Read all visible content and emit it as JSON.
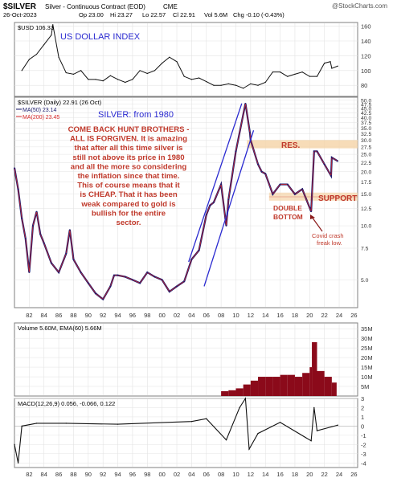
{
  "header": {
    "symbol": "$SILVER",
    "description": "Silver - Continuous Contract (EOD)",
    "exchange": "CME",
    "watermark": "@StockCharts.com",
    "date": "26-Oct-2023",
    "quote": {
      "op": "Op 23.00",
      "hi": "Hi 23.27",
      "lo": "Lo 22.57",
      "cl": "Cl 22.91",
      "vol": "Vol 5.6M",
      "chg": "Chg -0.10 (-0.43%)"
    }
  },
  "colors": {
    "price": "#1a1a6e",
    "ma50": "#d62728",
    "ma200": "#4a9a9a",
    "trendline": "#2a2ad0",
    "annotation_red": "#c0392b",
    "annotation_blue": "#2a2ad0",
    "volume": "#8b0a1a",
    "resistance_band": "#f5d3a6",
    "panel_border": "#7f7f7f",
    "grid": "#e3e3e3"
  },
  "chart_data": [
    {
      "type": "line",
      "panel": "dollar",
      "legend_label": "$USD 106.33",
      "title": "US DOLLAR INDEX",
      "x": [
        1981,
        1982,
        1983,
        1984,
        1985,
        1985.2,
        1986,
        1987,
        1988,
        1989,
        1990,
        1991,
        1992,
        1993,
        1994,
        1995,
        1996,
        1997,
        1998,
        1999,
        2000,
        2001,
        2002,
        2003,
        2004,
        2005,
        2006,
        2007,
        2008,
        2009,
        2010,
        2011,
        2012,
        2013,
        2014,
        2015,
        2016,
        2017,
        2018,
        2019,
        2020,
        2021,
        2022,
        2022.8,
        2023,
        2023.8
      ],
      "values": [
        100,
        115,
        122,
        135,
        148,
        162,
        118,
        97,
        95,
        100,
        88,
        88,
        86,
        93,
        88,
        84,
        88,
        100,
        96,
        100,
        110,
        118,
        112,
        92,
        88,
        90,
        85,
        80,
        80,
        82,
        80,
        76,
        82,
        80,
        84,
        98,
        98,
        92,
        95,
        98,
        92,
        92,
        110,
        112,
        103,
        106
      ],
      "ylim": [
        65,
        165
      ],
      "ticks": [
        80,
        100,
        120,
        140,
        160
      ],
      "grid": true
    },
    {
      "type": "line",
      "panel": "price",
      "legend": [
        "$SILVER (Daily) 22.91 (26 Oct)",
        "MA(50) 23.14",
        "MA(200) 23.45"
      ],
      "title": "SILVER: from 1980",
      "scale": "log",
      "x": [
        1980,
        1980.5,
        1981,
        1981.5,
        1982,
        1982.5,
        1983,
        1983.5,
        1984,
        1985,
        1986,
        1987,
        1987.5,
        1988,
        1989,
        1990,
        1991,
        1992,
        1993,
        1993.5,
        1994,
        1995,
        1996,
        1997,
        1998,
        1999,
        2000,
        2001,
        2002,
        2003,
        2004,
        2005,
        2006,
        2006.5,
        2007,
        2008,
        2008.7,
        2009,
        2010,
        2011.3,
        2011.9,
        2012,
        2013,
        2013.5,
        2014,
        2015,
        2016,
        2017,
        2018,
        2019,
        2020.2,
        2020.6,
        2021,
        2022,
        2022.9,
        2023,
        2023.8
      ],
      "values": [
        21,
        16,
        11,
        8.5,
        5.5,
        10,
        12,
        9,
        8,
        6.2,
        5.5,
        7,
        9.5,
        6.5,
        5.5,
        4.8,
        4.2,
        3.9,
        4.6,
        5.3,
        5.3,
        5.2,
        5.0,
        4.8,
        5.5,
        5.2,
        5.0,
        4.3,
        4.6,
        4.9,
        6.5,
        7.3,
        11.5,
        13,
        13.5,
        17,
        10,
        14,
        26,
        48,
        33,
        30,
        22,
        20,
        19.5,
        15,
        17,
        17,
        15,
        16,
        12,
        26,
        26,
        22,
        19,
        24,
        22.91
      ],
      "ylim": [
        3.5,
        52
      ],
      "ticks": [
        5.0,
        7.5,
        10.0,
        12.5,
        15.0,
        17.5,
        20.0,
        22.5,
        25.0,
        27.5,
        30.0,
        32.5,
        35.0,
        37.5,
        40.0,
        42.5,
        45.0,
        47.5,
        50.0
      ],
      "resistance": {
        "label": "RES.",
        "low": 27,
        "high": 30
      },
      "support": {
        "label": "SUPPORT",
        "value": 14.5
      },
      "trendlines": [
        {
          "x": [
            2003.6,
            2010.8
          ],
          "values": [
            6.3,
            48
          ]
        },
        {
          "x": [
            2005.7,
            2012.4
          ],
          "values": [
            4.6,
            34
          ]
        }
      ],
      "annotations": {
        "main": [
          "COME BACK HUNT BROTHERS -",
          "ALL IS FORGIVEN. It is amazing",
          "that after all this time silver is",
          "still not above its price in 1980",
          "and all the more so considering",
          "the inflation since that time.",
          "This of course means that it",
          "is CHEAP. That it has been",
          "weak compared to gold is",
          "bullish for the entire",
          "sector."
        ],
        "double_bottom": [
          "DOUBLE",
          "BOTTOM"
        ],
        "covid": [
          "Covid crash",
          "freak low."
        ]
      }
    },
    {
      "type": "bar",
      "panel": "volume",
      "legend": "Volume 5.60M, EMA(60) 5.66M",
      "x": [
        2008,
        2009,
        2010,
        2011,
        2012,
        2013,
        2014,
        2015,
        2016,
        2017,
        2018,
        2019,
        2020,
        2020.3,
        2021,
        2022,
        2023
      ],
      "values": [
        2.5,
        3,
        4,
        6,
        8,
        10,
        10,
        10,
        11,
        11,
        10,
        12,
        15,
        28,
        13,
        10,
        7
      ],
      "ylim": [
        0,
        38
      ],
      "ticks": [
        "5M",
        "10M",
        "15M",
        "20M",
        "25M",
        "30M",
        "35M"
      ],
      "tick_values": [
        5,
        10,
        15,
        20,
        25,
        30,
        35
      ]
    },
    {
      "type": "line",
      "panel": "macd",
      "legend": "MACD(12,26,9) 0.056, -0.066, 0.122",
      "x": [
        1980,
        1980.5,
        1981,
        1983,
        1987,
        1994,
        2004,
        2006,
        2008.7,
        2010.5,
        2011.3,
        2011.8,
        2013,
        2016,
        2020.2,
        2020.6,
        2021,
        2023.8
      ],
      "values": [
        -2,
        -4,
        0,
        0.3,
        0.3,
        0.2,
        0.5,
        0.8,
        -1.5,
        2,
        3,
        -2.5,
        -0.8,
        0.4,
        -1.6,
        2,
        -0.5,
        0.1
      ],
      "ylim": [
        -4.5,
        3
      ],
      "ticks": [
        "3",
        "2",
        "1",
        "0",
        "-1",
        "-2",
        "-3",
        "-4"
      ],
      "tick_values": [
        3,
        2,
        1,
        0,
        -1,
        -2,
        -3,
        -4
      ]
    }
  ],
  "x_axis": {
    "labels": [
      "82",
      "84",
      "86",
      "88",
      "90",
      "92",
      "94",
      "96",
      "98",
      "00",
      "02",
      "04",
      "06",
      "08",
      "10",
      "12",
      "14",
      "16",
      "18",
      "20",
      "22",
      "24",
      "26"
    ],
    "years": [
      1982,
      1984,
      1986,
      1988,
      1990,
      1992,
      1994,
      1996,
      1998,
      2000,
      2002,
      2004,
      2006,
      2008,
      2010,
      2012,
      2014,
      2016,
      2018,
      2020,
      2022,
      2024,
      2026
    ],
    "range": [
      1980,
      2026.5
    ]
  }
}
